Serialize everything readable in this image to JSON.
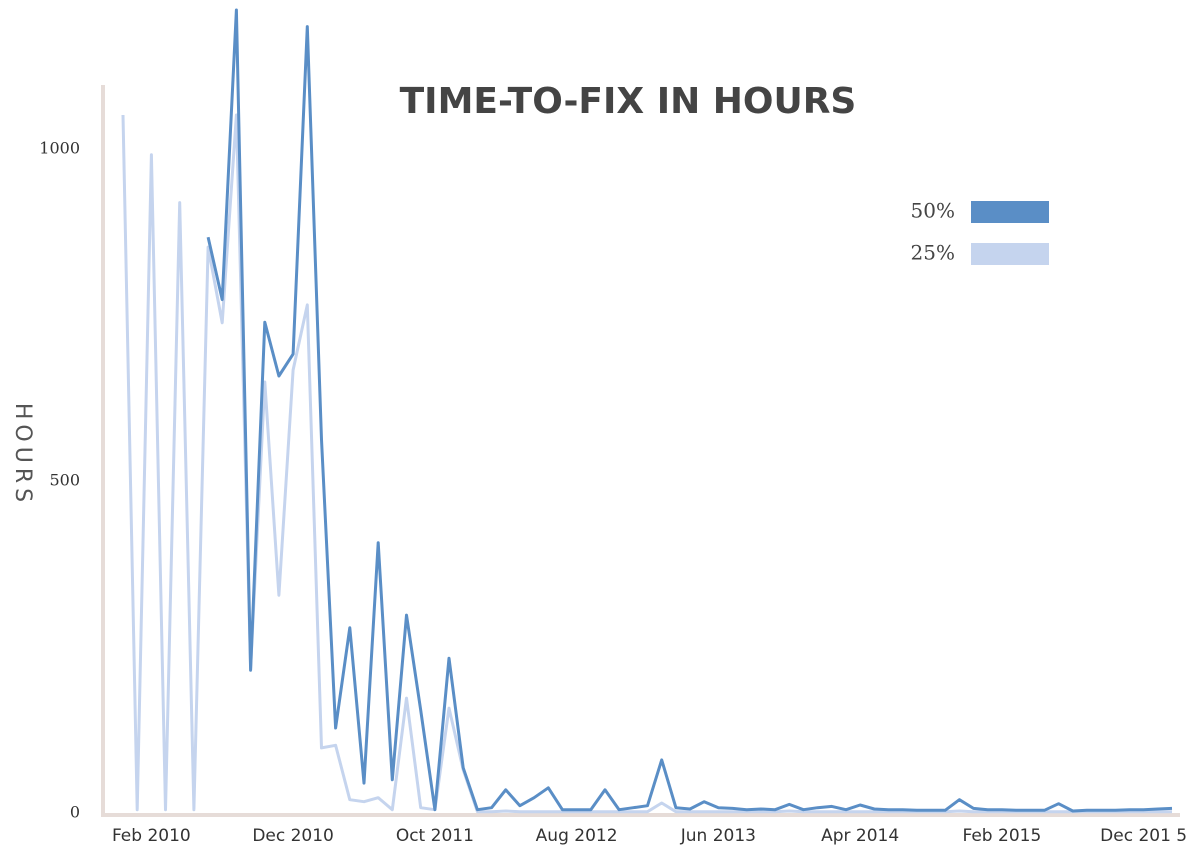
{
  "chart_data": {
    "type": "line",
    "title": "TIME-TO-FIX IN HOURS",
    "y_label": "HOURS",
    "categories": [
      null,
      null,
      "Feb 2010",
      null,
      null,
      null,
      null,
      null,
      null,
      null,
      null,
      null,
      "Dec 2010",
      null,
      null,
      null,
      null,
      null,
      null,
      null,
      null,
      null,
      "Oct 2011",
      null,
      null,
      null,
      null,
      null,
      null,
      null,
      null,
      null,
      "Aug 2012",
      null,
      null,
      null,
      null,
      null,
      null,
      null,
      null,
      null,
      "Jun 2013",
      null,
      null,
      null,
      null,
      null,
      null,
      null,
      null,
      null,
      "Apr 2014",
      null,
      null,
      null,
      null,
      null,
      null,
      null,
      null,
      null,
      "Feb 2015",
      null,
      null,
      null,
      null,
      null,
      null,
      null,
      null,
      null,
      "Dec 201 5",
      null,
      null
    ],
    "series": [
      {
        "name": "50%",
        "color": "#5a8ec6",
        "values": [
          null,
          null,
          null,
          null,
          null,
          null,
          867,
          773,
          1209,
          215,
          739,
          658,
          691,
          1184,
          562,
          128,
          279,
          45,
          407,
          50,
          298,
          155,
          5,
          233,
          68,
          5,
          8,
          35,
          11,
          23,
          38,
          5,
          5,
          5,
          35,
          5,
          8,
          11,
          80,
          8,
          6,
          17,
          8,
          7,
          5,
          6,
          5,
          13,
          5,
          8,
          10,
          5,
          12,
          6,
          5,
          5,
          4,
          4,
          4,
          20,
          7,
          5,
          5,
          4,
          4,
          4,
          14,
          3,
          4,
          4,
          4,
          5,
          5,
          6,
          7
        ]
      },
      {
        "name": "25%",
        "color": "#c5d4ee",
        "values": [
          1051,
          5,
          991,
          5,
          919,
          5,
          852,
          738,
          1051,
          218,
          649,
          328,
          667,
          765,
          98,
          102,
          20,
          17,
          23,
          5,
          173,
          8,
          5,
          158,
          65,
          2,
          2,
          3,
          2,
          2,
          2,
          2,
          2,
          2,
          2,
          2,
          2,
          2,
          15,
          2,
          2,
          2,
          2,
          2,
          2,
          2,
          2,
          3,
          2,
          2,
          2,
          2,
          2,
          2,
          2,
          2,
          2,
          2,
          2,
          3,
          2,
          2,
          2,
          2,
          2,
          2,
          2,
          2,
          2,
          2,
          2,
          2,
          2,
          2,
          2
        ]
      }
    ],
    "ylim": [
      0,
      1200
    ],
    "yticks": [
      0,
      500,
      1000
    ],
    "legend": "top-right"
  }
}
